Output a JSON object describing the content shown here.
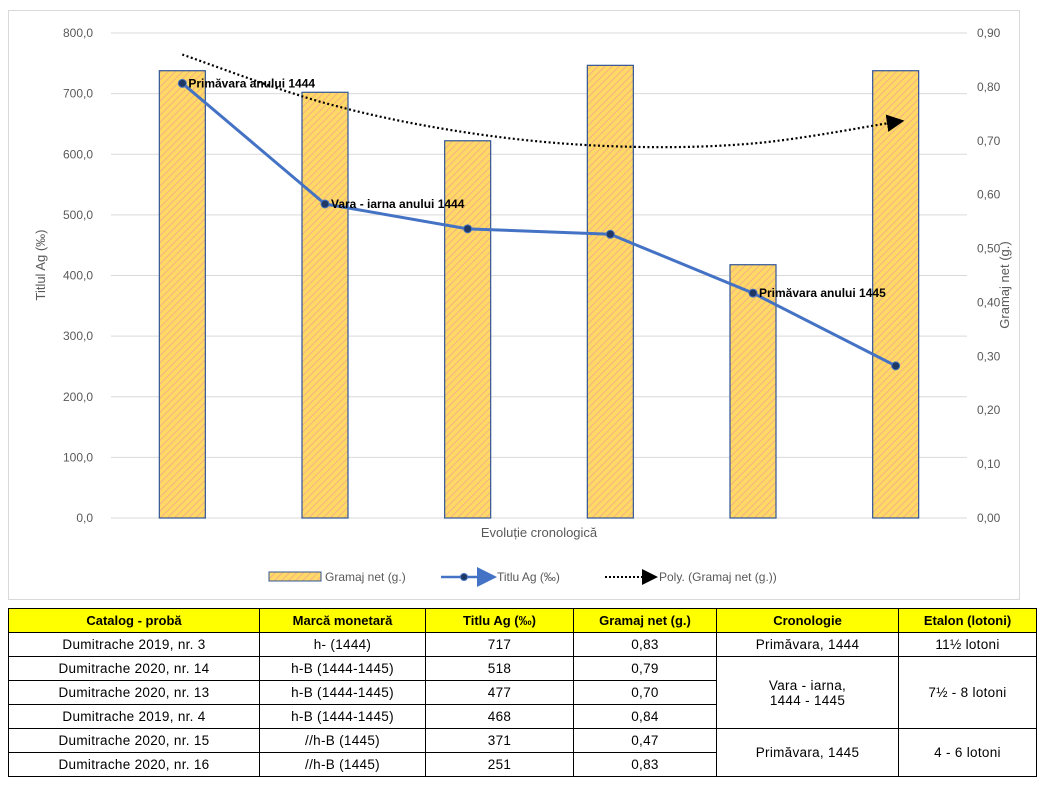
{
  "colors": {
    "bar_fill": "#ffd966",
    "bar_hatch": "#f4b183",
    "bar_border": "#2f5597",
    "line": "#4472c4",
    "trend": "#000000",
    "header_bg": "#ffff00"
  },
  "chart_data": {
    "type": "bar",
    "title": "",
    "xlabel": "Evoluție cronologică",
    "ylabel": "Titlul Ag (‰)",
    "y2label": "Gramaj net (g.)",
    "ylim": [
      0,
      800
    ],
    "y2lim": [
      0,
      0.9
    ],
    "y_ticks": [
      "0,0",
      "100,0",
      "200,0",
      "300,0",
      "400,0",
      "500,0",
      "600,0",
      "700,0",
      "800,0"
    ],
    "y2_ticks": [
      "0,00",
      "0,10",
      "0,20",
      "0,30",
      "0,40",
      "0,50",
      "0,60",
      "0,70",
      "0,80",
      "0,90"
    ],
    "grid": true,
    "legend_position": "bottom",
    "series": [
      {
        "name": "Gramaj net (g.)",
        "kind": "bar",
        "axis": "right",
        "values": [
          0.83,
          0.79,
          0.7,
          0.84,
          0.47,
          0.83
        ]
      },
      {
        "name": "Titlu Ag (‰)",
        "kind": "line",
        "axis": "left",
        "values": [
          717,
          518,
          477,
          468,
          371,
          251
        ]
      },
      {
        "name": "Poly. (Gramaj net (g.))",
        "kind": "trendline",
        "axis": "right",
        "values": [
          0.86,
          0.77,
          0.715,
          0.69,
          0.695,
          0.735
        ]
      }
    ],
    "annotations": [
      {
        "index": 0,
        "text": "Primăvara anului 1444"
      },
      {
        "index": 1,
        "text": "Vara - iarna anului 1444"
      },
      {
        "index": 4,
        "text": "Primăvara anului 1445"
      }
    ]
  },
  "table": {
    "headers": [
      "Catalog - probă",
      "Marcă monetară",
      "Titlu Ag (‰)",
      "Gramaj net (g.)",
      "Cronologie",
      "Etalon (lotoni)"
    ],
    "rows": [
      {
        "catalog": "Dumitrache 2019, nr. 3",
        "marca": "h- (1444)",
        "titlu": "717",
        "gramaj": "0,83"
      },
      {
        "catalog": "Dumitrache 2020, nr. 14",
        "marca": "h-B (1444-1445)",
        "titlu": "518",
        "gramaj": "0,79"
      },
      {
        "catalog": "Dumitrache 2020, nr. 13",
        "marca": "h-B (1444-1445)",
        "titlu": "477",
        "gramaj": "0,70"
      },
      {
        "catalog": "Dumitrache 2019, nr. 4",
        "marca": "h-B (1444-1445)",
        "titlu": "468",
        "gramaj": "0,84"
      },
      {
        "catalog": "Dumitrache 2020, nr. 15",
        "marca": "//h-B (1445)",
        "titlu": "371",
        "gramaj": "0,47"
      },
      {
        "catalog": "Dumitrache 2020, nr. 16",
        "marca": "//h-B (1445)",
        "titlu": "251",
        "gramaj": "0,83"
      }
    ],
    "cronologie": [
      "Primăvara, 1444",
      "Vara - iarna, 1444 - 1445",
      "Primăvara, 1445"
    ],
    "cronologie_lines": [
      "Vara - iarna,",
      "1444 - 1445"
    ],
    "etalon": [
      "11½ lotoni",
      "7½ - 8 lotoni",
      "4 - 6 lotoni"
    ]
  }
}
